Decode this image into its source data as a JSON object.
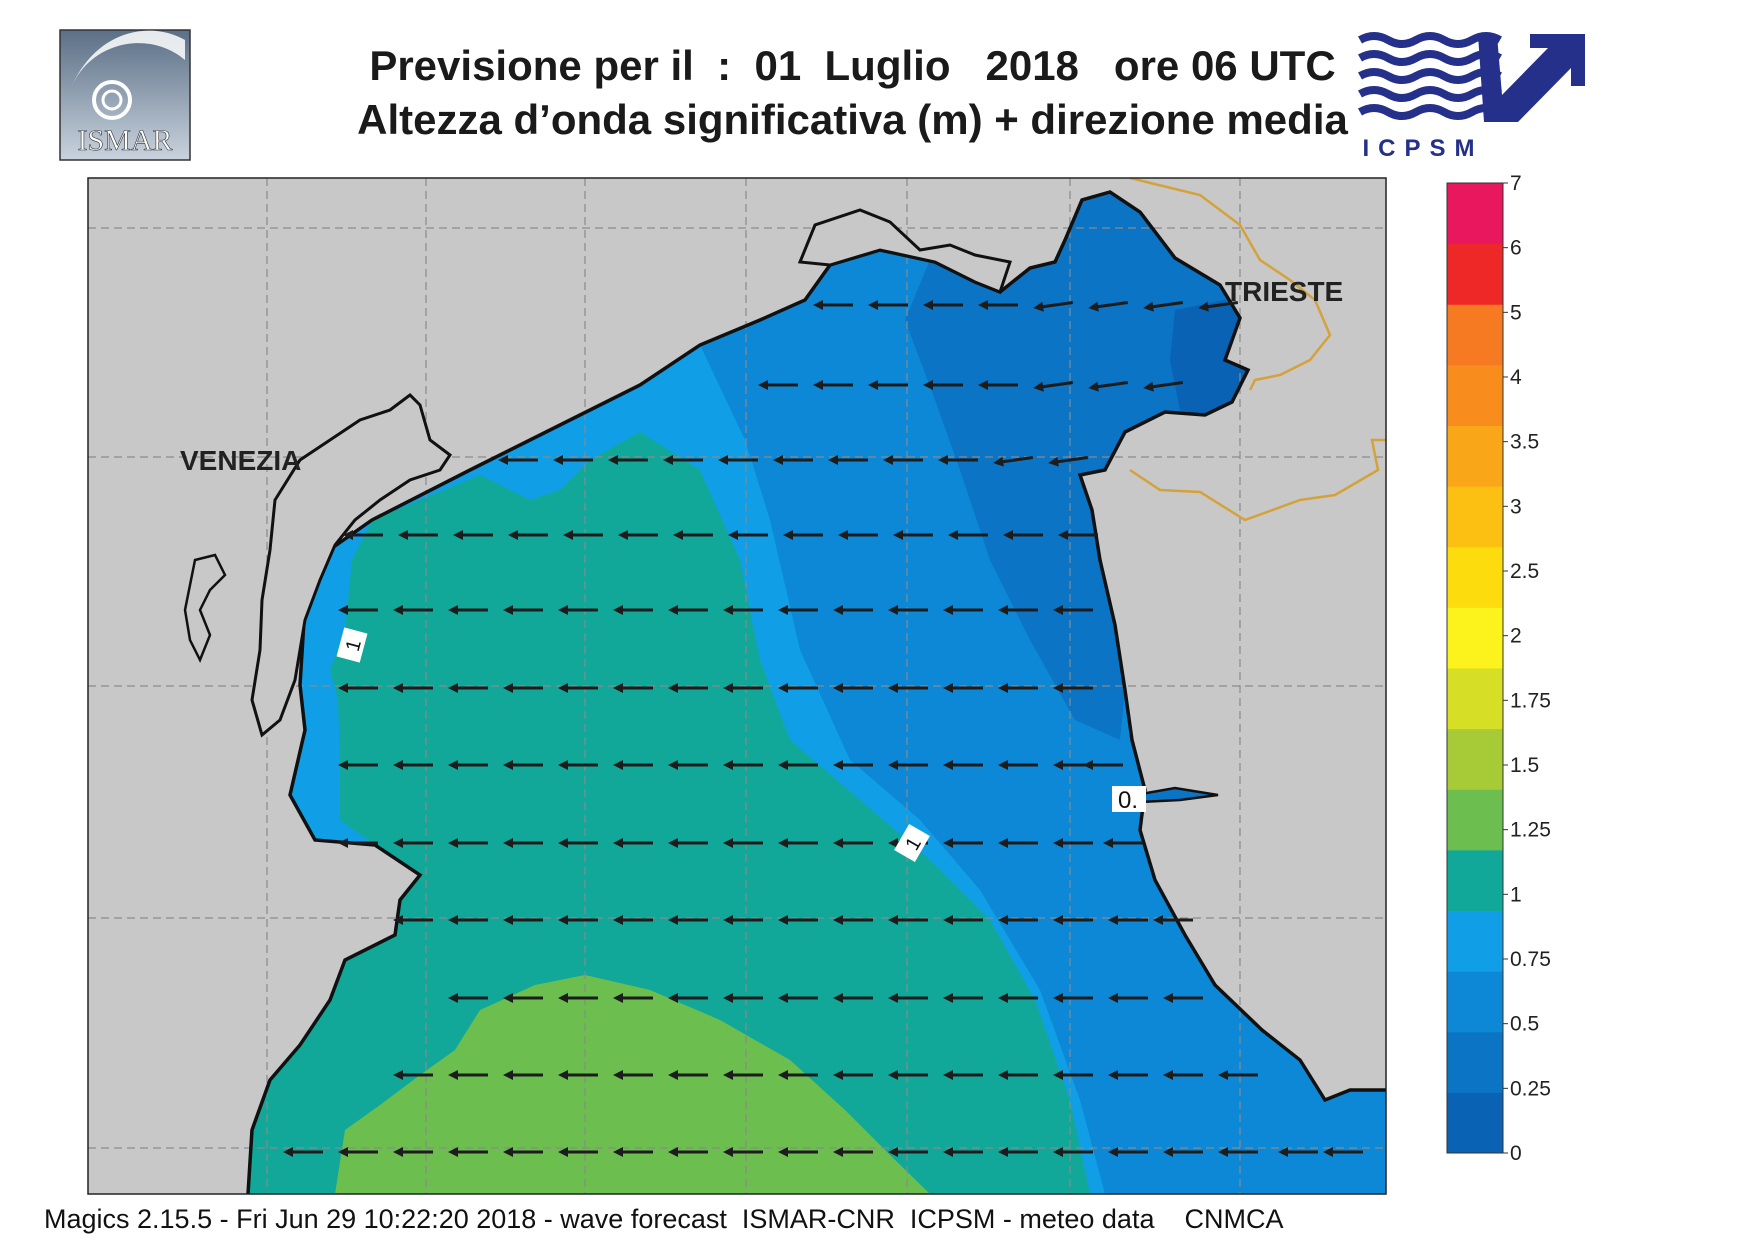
{
  "header": {
    "title_line1": "Previsione per il  :  01  Luglio   2018   ore 06 UTC",
    "title_line2": "Altezza d’onda significativa (m) + direzione media"
  },
  "logos": {
    "left": "ISMAR",
    "right": "ICPSM"
  },
  "map": {
    "cities": {
      "venezia": "VENEZIA",
      "trieste": "TRIESTE"
    },
    "contour_labels": {
      "label_a": "1",
      "label_b": "1",
      "label_c": "0."
    },
    "land_color": "#c8c8c8",
    "coast_color": "#111111",
    "border_color": "#d4a23a",
    "wave_direction": "westward"
  },
  "legend": {
    "unit": "m",
    "ticks": [
      "0",
      "0.25",
      "0.5",
      "0.75",
      "1",
      "1.25",
      "1.5",
      "1.75",
      "2",
      "2.5",
      "3",
      "3.5",
      "4",
      "4.5",
      "5",
      "6",
      "7"
    ],
    "tick_labels": [
      "0",
      "0.25",
      "0.5",
      "0.75",
      "1",
      "1.25",
      "1.5",
      "1.75",
      "2",
      "2.5",
      "3",
      "3.5",
      "4",
      "5",
      "6",
      "7"
    ],
    "colors": [
      "#0a62b4",
      "#0b74c4",
      "#0d88d6",
      "#109fe6",
      "#12a899",
      "#6cbf4f",
      "#a6cb37",
      "#d7de26",
      "#fdf31c",
      "#fddc0e",
      "#fcc012",
      "#f9a619",
      "#f88d1d",
      "#f57a21",
      "#ee2827",
      "#e9175e"
    ]
  },
  "footer": {
    "text": "Magics 2.15.5 - Fri Jun 29 10:22:20 2018 - wave forecast  ISMAR-CNR  ICPSM - meteo data    CNMCA"
  }
}
